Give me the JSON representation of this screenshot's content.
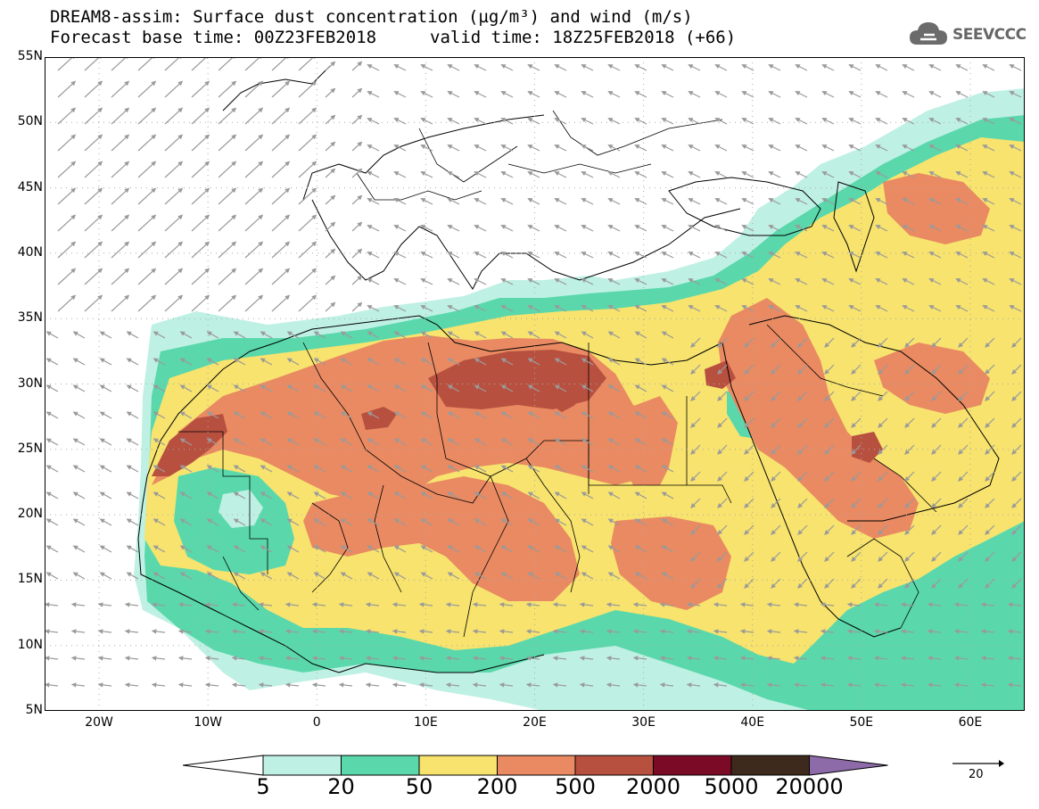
{
  "header": {
    "title_line1": "DREAM8-assim: Surface dust concentration (µg/m³) and wind (m/s)",
    "title_line2": "Forecast base time: 00Z23FEB2018",
    "valid_time": "valid time: 18Z25FEB2018 (+66)",
    "logo_text": "SEEVCCC"
  },
  "axes": {
    "lat_labels": [
      "55N",
      "50N",
      "45N",
      "40N",
      "35N",
      "30N",
      "25N",
      "20N",
      "15N",
      "10N",
      "5N"
    ],
    "lon_labels": [
      "20W",
      "10W",
      "0",
      "10E",
      "20E",
      "30E",
      "40E",
      "50E",
      "60E"
    ]
  },
  "colorbar": {
    "labels": [
      "5",
      "20",
      "50",
      "200",
      "500",
      "2000",
      "5000",
      "20000"
    ],
    "colors": [
      "#ffffff",
      "#bff0e4",
      "#5ad8ac",
      "#f7e36e",
      "#e98a62",
      "#b85040",
      "#7a0a26",
      "#3d2a1c",
      "#8d6aa8"
    ]
  },
  "wind_reference": {
    "value": "20"
  },
  "map_colors": {
    "land_background": "#ffffff",
    "grid_dots": "#aaaaaa",
    "wind_arrow": "#9a9a9a",
    "coastline": "#000000"
  }
}
